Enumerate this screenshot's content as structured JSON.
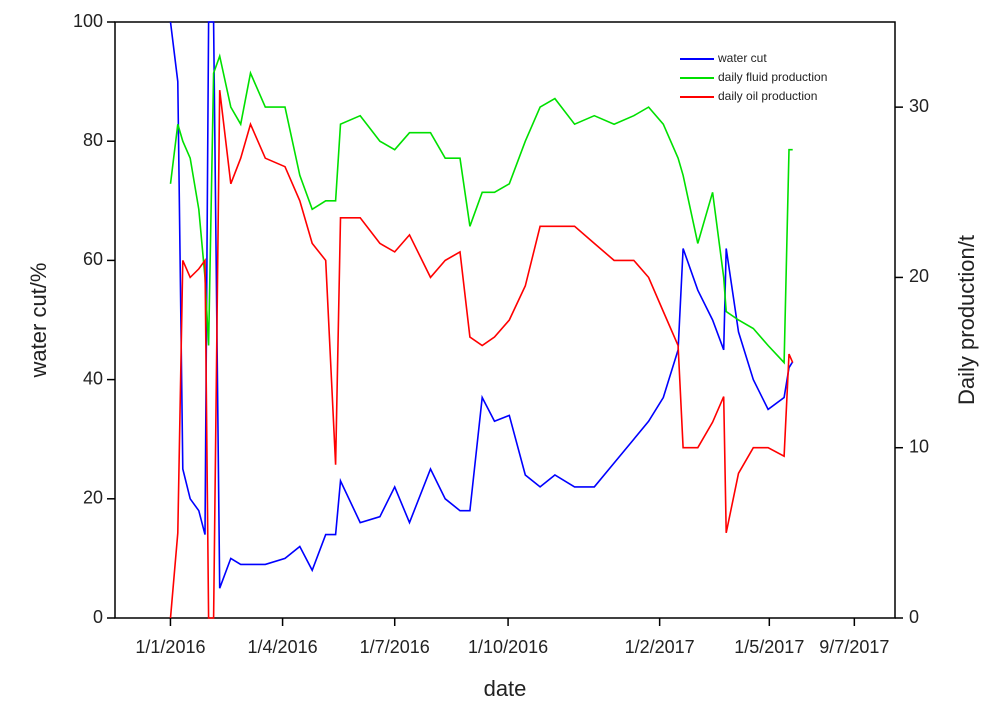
{
  "chart_data": {
    "type": "line",
    "x_label": "date",
    "y_label": "water cut/%",
    "y2_label": "Daily production/t",
    "x": [
      "2016-01-01",
      "2016-01-07",
      "2016-01-11",
      "2016-01-17",
      "2016-01-24",
      "2016-01-29",
      "2016-02-01",
      "2016-02-05",
      "2016-02-10",
      "2016-02-19",
      "2016-02-27",
      "2016-03-06",
      "2016-03-18",
      "2016-04-03",
      "2016-04-15",
      "2016-04-25",
      "2016-05-06",
      "2016-05-14",
      "2016-05-18",
      "2016-06-03",
      "2016-06-19",
      "2016-07-01",
      "2016-07-13",
      "2016-07-30",
      "2016-08-11",
      "2016-08-23",
      "2016-08-31",
      "2016-09-10",
      "2016-09-20",
      "2016-10-02",
      "2016-10-15",
      "2016-10-27",
      "2016-11-08",
      "2016-11-24",
      "2016-12-10",
      "2016-12-26",
      "2017-01-11",
      "2017-01-23",
      "2017-02-04",
      "2017-02-16",
      "2017-02-20",
      "2017-03-04",
      "2017-03-16",
      "2017-03-25",
      "2017-03-27",
      "2017-04-06",
      "2017-04-18",
      "2017-04-30",
      "2017-05-13",
      "2017-05-17",
      "2017-05-20"
    ],
    "series": [
      {
        "name": "water cut",
        "color": "#0000ff",
        "values": [
          100,
          90,
          25,
          20,
          18,
          14,
          100,
          100,
          5,
          10,
          9,
          9,
          9,
          10,
          12,
          8,
          14,
          14,
          23,
          16,
          17,
          22,
          16,
          25,
          20,
          18,
          18,
          37,
          33,
          34,
          24,
          22,
          24,
          22,
          22,
          26,
          30,
          33,
          37,
          45,
          62,
          55,
          50,
          45,
          62,
          48,
          40,
          35,
          37,
          42,
          43
        ]
      },
      {
        "name": "daily fluid production",
        "color": "#00e000",
        "axis": "y2",
        "values": [
          25.5,
          29,
          28,
          27,
          24,
          20,
          16,
          32,
          33,
          30,
          29,
          32,
          30,
          30,
          26,
          24,
          24.5,
          24.5,
          29,
          29.5,
          28,
          27.5,
          28.5,
          28.5,
          27,
          27,
          23,
          25,
          25,
          25.5,
          28,
          30,
          30.5,
          29,
          29.5,
          29,
          29.5,
          30,
          29,
          27,
          26,
          22,
          25,
          20,
          18,
          17.5,
          17,
          16,
          15,
          27.5,
          27.5
        ]
      },
      {
        "name": "daily oil production",
        "color": "#ff0000",
        "axis": "y2",
        "values": [
          0,
          5,
          21,
          20,
          20.5,
          21,
          0,
          0,
          31,
          25.5,
          27,
          29,
          27,
          26.5,
          24.5,
          22,
          21,
          9,
          23.5,
          23.5,
          22,
          21.5,
          22.5,
          20,
          21,
          21.5,
          16.5,
          16,
          16.5,
          17.5,
          19.5,
          23,
          23,
          23,
          22,
          21,
          21,
          20,
          18,
          16,
          10,
          10,
          11.5,
          13,
          5,
          8.5,
          10,
          10,
          9.5,
          15.5,
          15
        ]
      }
    ],
    "xlim": [
      "2015-11-17",
      "2017-08-11"
    ],
    "xticks": [
      {
        "value": "2016-01-01",
        "label": "1/1/2016"
      },
      {
        "value": "2016-04-01",
        "label": "1/4/2016"
      },
      {
        "value": "2016-07-01",
        "label": "1/7/2016"
      },
      {
        "value": "2016-10-01",
        "label": "1/10/2016"
      },
      {
        "value": "2017-02-01",
        "label": "1/2/2017"
      },
      {
        "value": "2017-05-01",
        "label": "1/5/2017"
      },
      {
        "value": "2017-07-09",
        "label": "9/7/2017"
      }
    ],
    "ylim": [
      0,
      100
    ],
    "yticks": [
      0,
      20,
      40,
      60,
      80,
      100
    ],
    "y2lim": [
      0,
      35
    ],
    "y2ticks": [
      0,
      10,
      20,
      30
    ],
    "legend": "upper right"
  }
}
